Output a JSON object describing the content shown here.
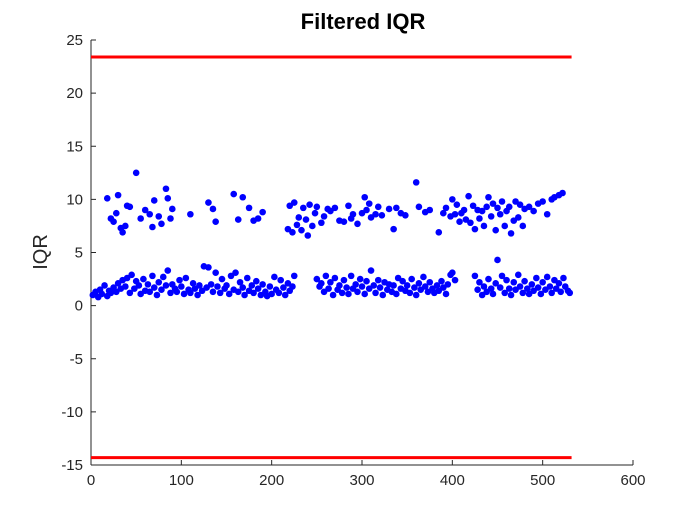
{
  "chart_data": {
    "type": "scatter",
    "title": "Filtered IQR",
    "xlabel": "",
    "ylabel": "IQR",
    "xlim": [
      0,
      600
    ],
    "ylim": [
      -15,
      25
    ],
    "xticks": [
      0,
      100,
      200,
      300,
      400,
      500,
      600
    ],
    "yticks": [
      -15,
      -10,
      -5,
      0,
      5,
      10,
      15,
      20,
      25
    ],
    "grid": false,
    "colors": {
      "points": "#0000ff",
      "thresholds": "#ff0000",
      "axes": "#262626"
    },
    "threshold_lines": [
      {
        "y": 23.4,
        "x": [
          0,
          532
        ]
      },
      {
        "y": -14.3,
        "x": [
          0,
          532
        ]
      }
    ],
    "series": [
      {
        "points": [
          [
            2,
            1.0
          ],
          [
            5,
            1.3
          ],
          [
            8,
            0.8
          ],
          [
            10,
            1.5
          ],
          [
            12,
            1.1
          ],
          [
            15,
            1.9
          ],
          [
            18,
            0.9
          ],
          [
            20,
            1.4
          ],
          [
            22,
            1.2
          ],
          [
            25,
            1.7
          ],
          [
            28,
            1.3
          ],
          [
            30,
            2.1
          ],
          [
            33,
            1.6
          ],
          [
            35,
            2.4
          ],
          [
            38,
            1.8
          ],
          [
            40,
            2.6
          ],
          [
            43,
            1.2
          ],
          [
            45,
            2.9
          ],
          [
            48,
            1.6
          ],
          [
            50,
            2.3
          ],
          [
            53,
            1.9
          ],
          [
            55,
            1.1
          ],
          [
            58,
            2.5
          ],
          [
            60,
            1.4
          ],
          [
            63,
            2.0
          ],
          [
            65,
            1.3
          ],
          [
            68,
            2.8
          ],
          [
            70,
            1.7
          ],
          [
            73,
            1.0
          ],
          [
            75,
            2.2
          ],
          [
            78,
            1.5
          ],
          [
            80,
            2.7
          ],
          [
            83,
            1.9
          ],
          [
            85,
            3.3
          ],
          [
            88,
            1.2
          ],
          [
            90,
            2.0
          ],
          [
            93,
            1.6
          ],
          [
            95,
            1.3
          ],
          [
            98,
            2.4
          ],
          [
            100,
            1.8
          ],
          [
            103,
            1.1
          ],
          [
            105,
            2.6
          ],
          [
            108,
            1.5
          ],
          [
            110,
            1.2
          ],
          [
            113,
            2.1
          ],
          [
            115,
            1.6
          ],
          [
            118,
            1.0
          ],
          [
            120,
            1.9
          ],
          [
            123,
            1.4
          ],
          [
            125,
            3.7
          ],
          [
            128,
            1.7
          ],
          [
            130,
            3.6
          ],
          [
            133,
            2.0
          ],
          [
            135,
            1.3
          ],
          [
            138,
            3.1
          ],
          [
            140,
            1.8
          ],
          [
            143,
            1.2
          ],
          [
            145,
            2.5
          ],
          [
            148,
            1.6
          ],
          [
            150,
            1.9
          ],
          [
            153,
            1.1
          ],
          [
            155,
            2.8
          ],
          [
            158,
            1.5
          ],
          [
            160,
            3.1
          ],
          [
            163,
            1.3
          ],
          [
            165,
            2.2
          ],
          [
            168,
            1.7
          ],
          [
            170,
            1.0
          ],
          [
            173,
            2.6
          ],
          [
            175,
            1.4
          ],
          [
            178,
            1.9
          ],
          [
            180,
            1.2
          ],
          [
            183,
            2.3
          ],
          [
            185,
            1.6
          ],
          [
            188,
            1.0
          ],
          [
            190,
            2.0
          ],
          [
            193,
            1.3
          ],
          [
            195,
            0.9
          ],
          [
            198,
            1.8
          ],
          [
            200,
            1.1
          ],
          [
            203,
            2.7
          ],
          [
            205,
            1.5
          ],
          [
            208,
            1.2
          ],
          [
            210,
            2.4
          ],
          [
            213,
            1.7
          ],
          [
            215,
            1.0
          ],
          [
            218,
            2.1
          ],
          [
            220,
            1.4
          ],
          [
            223,
            1.8
          ],
          [
            225,
            2.8
          ],
          [
            250,
            2.5
          ],
          [
            253,
            1.8
          ],
          [
            255,
            2.1
          ],
          [
            258,
            1.3
          ],
          [
            260,
            2.8
          ],
          [
            263,
            1.6
          ],
          [
            265,
            2.2
          ],
          [
            268,
            1.0
          ],
          [
            270,
            2.6
          ],
          [
            273,
            1.5
          ],
          [
            275,
            1.9
          ],
          [
            278,
            1.2
          ],
          [
            280,
            2.4
          ],
          [
            283,
            1.7
          ],
          [
            285,
            1.1
          ],
          [
            288,
            2.8
          ],
          [
            290,
            1.6
          ],
          [
            293,
            2.0
          ],
          [
            295,
            1.3
          ],
          [
            298,
            2.5
          ],
          [
            300,
            1.8
          ],
          [
            303,
            1.1
          ],
          [
            305,
            2.3
          ],
          [
            308,
            1.6
          ],
          [
            310,
            3.3
          ],
          [
            313,
            1.9
          ],
          [
            315,
            1.2
          ],
          [
            318,
            2.4
          ],
          [
            320,
            1.7
          ],
          [
            323,
            1.0
          ],
          [
            325,
            2.2
          ],
          [
            328,
            1.5
          ],
          [
            330,
            2.0
          ],
          [
            333,
            1.3
          ],
          [
            335,
            1.9
          ],
          [
            338,
            1.1
          ],
          [
            340,
            2.6
          ],
          [
            343,
            1.6
          ],
          [
            345,
            2.3
          ],
          [
            348,
            1.4
          ],
          [
            350,
            1.9
          ],
          [
            353,
            1.2
          ],
          [
            355,
            2.5
          ],
          [
            358,
            1.7
          ],
          [
            360,
            1.0
          ],
          [
            363,
            2.1
          ],
          [
            365,
            1.5
          ],
          [
            368,
            2.7
          ],
          [
            370,
            1.8
          ],
          [
            373,
            1.3
          ],
          [
            375,
            2.2
          ],
          [
            378,
            1.6
          ],
          [
            380,
            1.2
          ],
          [
            383,
            1.9
          ],
          [
            385,
            1.4
          ],
          [
            388,
            2.3
          ],
          [
            390,
            1.7
          ],
          [
            393,
            1.1
          ],
          [
            395,
            2.0
          ],
          [
            398,
            2.9
          ],
          [
            400,
            3.1
          ],
          [
            403,
            2.4
          ],
          [
            425,
            2.8
          ],
          [
            428,
            1.5
          ],
          [
            430,
            2.2
          ],
          [
            433,
            1.0
          ],
          [
            435,
            1.8
          ],
          [
            438,
            1.3
          ],
          [
            440,
            2.5
          ],
          [
            443,
            1.6
          ],
          [
            445,
            1.1
          ],
          [
            448,
            2.1
          ],
          [
            450,
            4.3
          ],
          [
            453,
            1.7
          ],
          [
            455,
            2.8
          ],
          [
            458,
            1.2
          ],
          [
            460,
            2.4
          ],
          [
            463,
            1.6
          ],
          [
            465,
            1.0
          ],
          [
            468,
            2.2
          ],
          [
            470,
            1.5
          ],
          [
            473,
            2.9
          ],
          [
            475,
            1.8
          ],
          [
            478,
            1.2
          ],
          [
            480,
            2.3
          ],
          [
            483,
            1.6
          ],
          [
            485,
            1.1
          ],
          [
            488,
            2.0
          ],
          [
            490,
            1.4
          ],
          [
            493,
            2.6
          ],
          [
            495,
            1.7
          ],
          [
            498,
            1.1
          ],
          [
            500,
            2.2
          ],
          [
            503,
            1.5
          ],
          [
            505,
            2.7
          ],
          [
            508,
            1.8
          ],
          [
            510,
            1.2
          ],
          [
            513,
            2.4
          ],
          [
            515,
            1.6
          ],
          [
            518,
            2.1
          ],
          [
            520,
            1.3
          ],
          [
            523,
            2.6
          ],
          [
            525,
            1.8
          ],
          [
            528,
            1.4
          ],
          [
            530,
            1.2
          ],
          [
            18,
            10.1
          ],
          [
            22,
            8.2
          ],
          [
            25,
            7.9
          ],
          [
            28,
            8.7
          ],
          [
            30,
            10.4
          ],
          [
            33,
            7.3
          ],
          [
            35,
            6.9
          ],
          [
            38,
            7.5
          ],
          [
            40,
            9.4
          ],
          [
            43,
            9.3
          ],
          [
            50,
            12.5
          ],
          [
            55,
            8.2
          ],
          [
            60,
            9.0
          ],
          [
            65,
            8.6
          ],
          [
            68,
            7.4
          ],
          [
            70,
            9.9
          ],
          [
            75,
            8.4
          ],
          [
            78,
            7.7
          ],
          [
            83,
            11.0
          ],
          [
            85,
            10.1
          ],
          [
            88,
            8.2
          ],
          [
            90,
            9.1
          ],
          [
            110,
            8.6
          ],
          [
            130,
            9.7
          ],
          [
            135,
            9.1
          ],
          [
            138,
            7.9
          ],
          [
            158,
            10.5
          ],
          [
            163,
            8.1
          ],
          [
            168,
            10.2
          ],
          [
            175,
            9.2
          ],
          [
            180,
            8.0
          ],
          [
            185,
            8.2
          ],
          [
            190,
            8.8
          ],
          [
            218,
            7.2
          ],
          [
            220,
            9.4
          ],
          [
            223,
            6.9
          ],
          [
            225,
            9.7
          ],
          [
            228,
            7.6
          ],
          [
            230,
            8.3
          ],
          [
            233,
            7.1
          ],
          [
            235,
            9.2
          ],
          [
            238,
            8.1
          ],
          [
            240,
            6.6
          ],
          [
            242,
            9.5
          ],
          [
            245,
            7.5
          ],
          [
            248,
            8.7
          ],
          [
            250,
            9.3
          ],
          [
            255,
            7.8
          ],
          [
            258,
            8.4
          ],
          [
            262,
            9.1
          ],
          [
            265,
            8.9
          ],
          [
            270,
            9.2
          ],
          [
            275,
            8.0
          ],
          [
            280,
            7.9
          ],
          [
            285,
            9.4
          ],
          [
            288,
            8.2
          ],
          [
            290,
            8.6
          ],
          [
            295,
            7.7
          ],
          [
            300,
            8.7
          ],
          [
            303,
            10.2
          ],
          [
            305,
            9.0
          ],
          [
            308,
            9.6
          ],
          [
            310,
            8.3
          ],
          [
            315,
            8.6
          ],
          [
            318,
            9.3
          ],
          [
            322,
            8.5
          ],
          [
            330,
            9.1
          ],
          [
            335,
            7.2
          ],
          [
            338,
            9.2
          ],
          [
            343,
            8.7
          ],
          [
            348,
            8.5
          ],
          [
            360,
            11.6
          ],
          [
            363,
            9.3
          ],
          [
            370,
            8.8
          ],
          [
            375,
            9.0
          ],
          [
            385,
            6.9
          ],
          [
            390,
            8.7
          ],
          [
            393,
            9.2
          ],
          [
            398,
            8.4
          ],
          [
            400,
            10.0
          ],
          [
            403,
            8.6
          ],
          [
            405,
            9.5
          ],
          [
            408,
            7.9
          ],
          [
            410,
            8.7
          ],
          [
            413,
            9.0
          ],
          [
            415,
            8.1
          ],
          [
            418,
            10.3
          ],
          [
            420,
            7.8
          ],
          [
            423,
            9.4
          ],
          [
            425,
            7.2
          ],
          [
            428,
            9.0
          ],
          [
            430,
            8.2
          ],
          [
            433,
            8.9
          ],
          [
            435,
            7.5
          ],
          [
            438,
            9.3
          ],
          [
            440,
            10.2
          ],
          [
            443,
            8.4
          ],
          [
            445,
            9.6
          ],
          [
            448,
            7.1
          ],
          [
            450,
            9.2
          ],
          [
            453,
            8.6
          ],
          [
            455,
            9.8
          ],
          [
            458,
            7.5
          ],
          [
            460,
            8.9
          ],
          [
            463,
            9.3
          ],
          [
            465,
            6.8
          ],
          [
            468,
            8.0
          ],
          [
            470,
            9.8
          ],
          [
            473,
            8.3
          ],
          [
            475,
            9.5
          ],
          [
            478,
            7.5
          ],
          [
            480,
            9.1
          ],
          [
            485,
            9.3
          ],
          [
            490,
            8.9
          ],
          [
            495,
            9.6
          ],
          [
            500,
            9.8
          ],
          [
            505,
            8.6
          ],
          [
            510,
            10.0
          ],
          [
            513,
            10.2
          ],
          [
            518,
            10.4
          ],
          [
            522,
            10.6
          ]
        ]
      }
    ]
  }
}
